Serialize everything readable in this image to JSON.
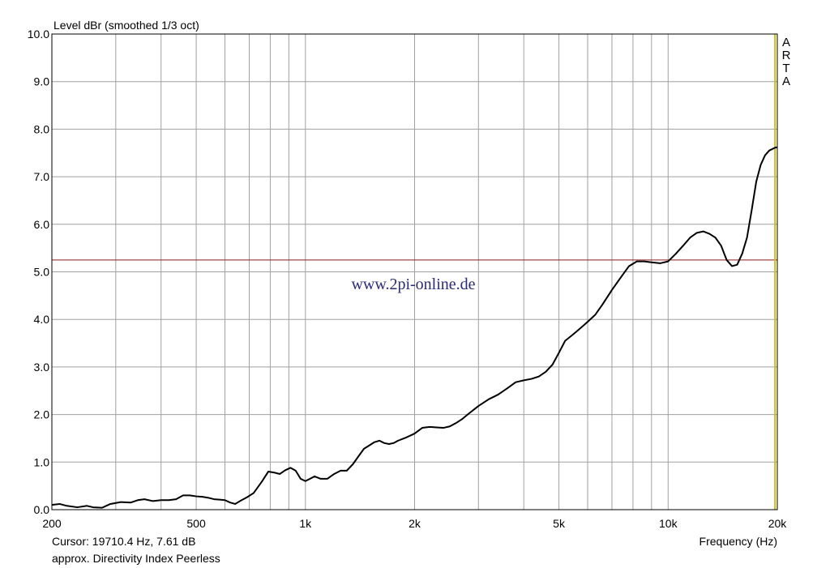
{
  "chart_data": {
    "type": "line",
    "title": "Level dBr (smoothed 1/3 oct)",
    "xlabel": "Frequency (Hz)",
    "x_scale": "log",
    "xlim": [
      200,
      20000
    ],
    "ylim": [
      0,
      10
    ],
    "grid": true,
    "x_ticks": [
      {
        "v": 200,
        "label": "200"
      },
      {
        "v": 500,
        "label": "500"
      },
      {
        "v": 1000,
        "label": "1k"
      },
      {
        "v": 2000,
        "label": "2k"
      },
      {
        "v": 5000,
        "label": "5k"
      },
      {
        "v": 10000,
        "label": "10k"
      },
      {
        "v": 20000,
        "label": "20k"
      }
    ],
    "y_ticks": [
      {
        "v": 0,
        "label": "0.0"
      },
      {
        "v": 1,
        "label": "1.0"
      },
      {
        "v": 2,
        "label": "2.0"
      },
      {
        "v": 3,
        "label": "3.0"
      },
      {
        "v": 4,
        "label": "4.0"
      },
      {
        "v": 5,
        "label": "5.0"
      },
      {
        "v": 6,
        "label": "6.0"
      },
      {
        "v": 7,
        "label": "7.0"
      },
      {
        "v": 8,
        "label": "8.0"
      },
      {
        "v": 9,
        "label": "9.0"
      },
      {
        "v": 10,
        "label": "10.0"
      }
    ],
    "reference_line_y": 5.25,
    "cursor_x": 19710.4,
    "series": [
      {
        "color": "#000000",
        "x": [
          200,
          210,
          220,
          235,
          250,
          260,
          275,
          290,
          310,
          330,
          345,
          360,
          380,
          400,
          420,
          440,
          460,
          480,
          500,
          520,
          540,
          560,
          580,
          600,
          620,
          640,
          660,
          690,
          720,
          760,
          790,
          820,
          850,
          880,
          910,
          940,
          970,
          1000,
          1030,
          1060,
          1100,
          1150,
          1200,
          1250,
          1300,
          1350,
          1400,
          1450,
          1500,
          1550,
          1600,
          1650,
          1700,
          1750,
          1800,
          1900,
          2000,
          2100,
          2200,
          2300,
          2400,
          2500,
          2600,
          2700,
          2800,
          3000,
          3200,
          3400,
          3600,
          3800,
          4000,
          4200,
          4400,
          4600,
          4800,
          5000,
          5200,
          5400,
          5600,
          5800,
          6000,
          6300,
          6600,
          7000,
          7400,
          7800,
          8200,
          8600,
          9000,
          9500,
          10000,
          10500,
          11000,
          11500,
          12000,
          12500,
          13000,
          13500,
          14000,
          14500,
          15000,
          15500,
          16000,
          16500,
          17000,
          17500,
          18000,
          18500,
          19000,
          19710.4,
          20000
        ],
        "y": [
          0.1,
          0.12,
          0.08,
          0.05,
          0.08,
          0.05,
          0.04,
          0.12,
          0.16,
          0.15,
          0.2,
          0.22,
          0.18,
          0.2,
          0.2,
          0.22,
          0.3,
          0.3,
          0.28,
          0.27,
          0.25,
          0.22,
          0.21,
          0.2,
          0.15,
          0.12,
          0.18,
          0.26,
          0.35,
          0.6,
          0.8,
          0.78,
          0.75,
          0.83,
          0.88,
          0.82,
          0.65,
          0.6,
          0.65,
          0.7,
          0.65,
          0.65,
          0.75,
          0.82,
          0.82,
          0.95,
          1.12,
          1.28,
          1.35,
          1.42,
          1.45,
          1.4,
          1.38,
          1.4,
          1.45,
          1.52,
          1.6,
          1.72,
          1.74,
          1.73,
          1.72,
          1.75,
          1.82,
          1.9,
          2.0,
          2.18,
          2.32,
          2.42,
          2.55,
          2.68,
          2.72,
          2.75,
          2.8,
          2.9,
          3.05,
          3.3,
          3.55,
          3.65,
          3.75,
          3.85,
          3.95,
          4.1,
          4.32,
          4.62,
          4.88,
          5.12,
          5.22,
          5.22,
          5.2,
          5.18,
          5.22,
          5.38,
          5.55,
          5.72,
          5.82,
          5.85,
          5.8,
          5.72,
          5.55,
          5.25,
          5.12,
          5.15,
          5.38,
          5.72,
          6.3,
          6.9,
          7.25,
          7.45,
          7.55,
          7.61,
          7.62
        ]
      }
    ]
  },
  "labels": {
    "ylabel_top": "Level dBr (smoothed 1/3 oct)",
    "xlabel": "Frequency (Hz)",
    "cursor_readout": "Cursor: 19710.4 Hz, 7.61 dB",
    "caption": "approx. Directivity Index Peerless",
    "watermark": "www.2pi-online.de",
    "brand": [
      "A",
      "R",
      "T",
      "A"
    ]
  },
  "colors": {
    "grid": "#a0a0a0",
    "reference_line": "#8b1a1a",
    "cursor_line": "#c8c000",
    "curve": "#000000",
    "watermark": "#2a2a7a"
  }
}
